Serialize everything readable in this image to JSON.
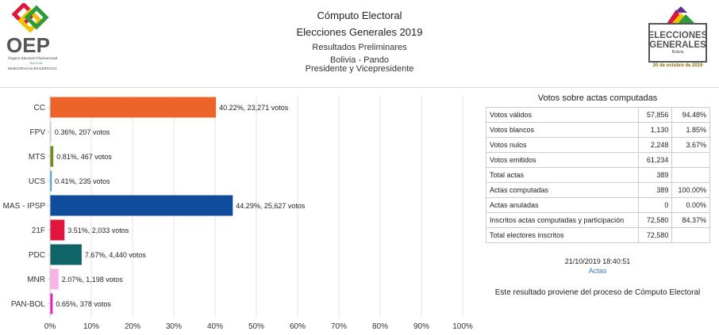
{
  "header": {
    "title": "Cómputo Electoral",
    "subtitle": "Elecciones Generales 2019",
    "status": "Resultados Preliminares",
    "location": "Bolivia - Pando",
    "office": "Presidente y Vicepresidente"
  },
  "logo_left": {
    "acronym": "OEP",
    "org_name": "Órgano Electoral Plurinacional",
    "country": "BOLIVIA",
    "tagline": "DEMOCRACIAS EN EJERCICIO"
  },
  "logo_right": {
    "line1": "ELECCIONES",
    "line2": "GENERALES",
    "country": "Bolivia",
    "date": "20 de octubre de 2019"
  },
  "chart_data": {
    "type": "bar",
    "orientation": "horizontal",
    "categories": [
      "CC",
      "FPV",
      "MTS",
      "UCS",
      "MAS - IPSP",
      "21F",
      "PDC",
      "MNR",
      "PAN-BOL"
    ],
    "values": [
      40.22,
      0.36,
      0.81,
      0.41,
      44.29,
      3.51,
      7.67,
      2.07,
      0.65
    ],
    "labels": [
      "40.22%,  23,271 votos",
      "0.36%,  207 votos",
      "0.81%,  467 votos",
      "0.41%,  235 votos",
      "44.29%,  25,627 votos",
      "3.51%,  2,033 votos",
      "7.67%,  4,440 votos",
      "2.07%,  1,198 votos",
      "0.65%,  378 votos"
    ],
    "colors": [
      "#ec6429",
      "#d9d9d9",
      "#6f8e1f",
      "#3a9ad9",
      "#0f4c9b",
      "#e0163f",
      "#0f6566",
      "#f7b3e6",
      "#e51fc1"
    ],
    "x_ticks": [
      "0%",
      "10%",
      "20%",
      "30%",
      "40%",
      "50%",
      "60%",
      "70%",
      "80%",
      "90%",
      "100%"
    ],
    "xlim": [
      0,
      100
    ],
    "grid": true
  },
  "summary": {
    "title": "Votos sobre actas computadas",
    "rows": [
      {
        "label": "Votos válidos",
        "value": "57,856",
        "pct": "94.48%"
      },
      {
        "label": "Votos blancos",
        "value": "1,130",
        "pct": "1.85%"
      },
      {
        "label": "Votos nulos",
        "value": "2,248",
        "pct": "3.67%"
      },
      {
        "label": "Votos emitidos",
        "value": "61,234",
        "pct": ""
      },
      {
        "label": "Total actas",
        "value": "389",
        "pct": ""
      },
      {
        "label": "Actas computadas",
        "value": "389",
        "pct": "100.00%"
      },
      {
        "label": "Actas anuladas",
        "value": "0",
        "pct": "0.00%"
      },
      {
        "label": "Inscritos actas computadas y participación",
        "value": "72,580",
        "pct": "84.37%"
      },
      {
        "label": "Total electores inscritos",
        "value": "72,580",
        "pct": ""
      }
    ],
    "timestamp": "21/10/2019 18:40:51",
    "link": "Actas",
    "note": "Este resultado proviene del proceso de Cómputo Electoral"
  }
}
